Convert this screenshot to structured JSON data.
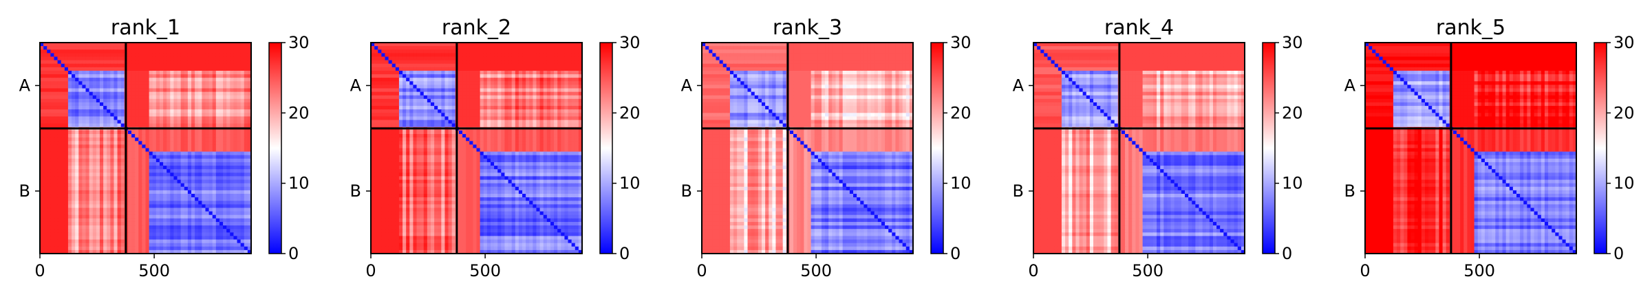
{
  "chart_data": {
    "type": "heatmap",
    "colormap": {
      "name": "bwr",
      "colors": [
        "#0000ff",
        "#ffffff",
        "#ff0000"
      ],
      "vmin": 0,
      "vmax": 30,
      "ticks": [
        0,
        10,
        20,
        30
      ]
    },
    "x_ticks": [
      0,
      500
    ],
    "xlim": [
      0,
      924
    ],
    "chain_boundary": 376,
    "chains": [
      {
        "label": "A",
        "start": 0,
        "end": 376
      },
      {
        "label": "B",
        "start": 376,
        "end": 924
      }
    ],
    "panels": [
      {
        "title": "rank_1",
        "intra_a": 8,
        "intra_b": 7,
        "inter": 27,
        "off_a_tail": 22
      },
      {
        "title": "rank_2",
        "intra_a": 8,
        "intra_b": 7,
        "inter": 27,
        "off_a_tail": 23
      },
      {
        "title": "rank_3",
        "intra_a": 9,
        "intra_b": 7,
        "inter": 24,
        "off_a_tail": 19
      },
      {
        "title": "rank_4",
        "intra_a": 9,
        "intra_b": 7,
        "inter": 25,
        "off_a_tail": 20
      },
      {
        "title": "rank_5",
        "intra_a": 9,
        "intra_b": 7,
        "inter": 29,
        "off_a_tail": 28
      }
    ]
  }
}
